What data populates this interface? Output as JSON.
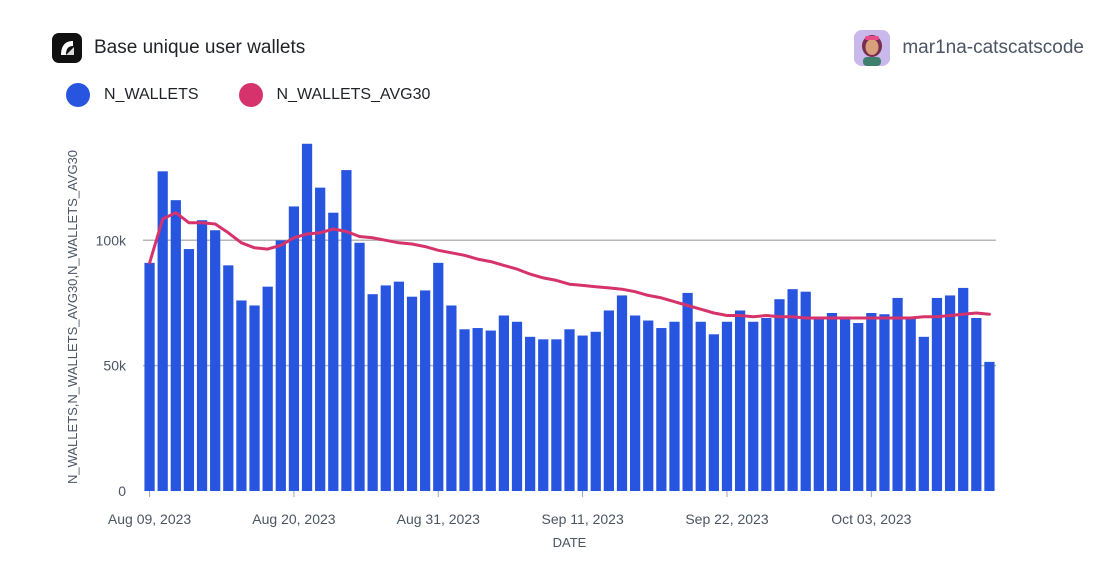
{
  "header": {
    "title": "Base unique user wallets",
    "username": "mar1na-catscatscode",
    "logo_icon": "flipside-logo-icon",
    "avatar_icon": "user-avatar-icon"
  },
  "legend": [
    {
      "label": "N_WALLETS",
      "color": "#2855e0"
    },
    {
      "label": "N_WALLETS_AVG30",
      "color": "#d6336c"
    }
  ],
  "chart_data": {
    "type": "bar",
    "title": "Base unique user wallets",
    "xlabel": "DATE",
    "ylabel": "N_WALLETS,N_WALLETS_AVG30,N_WALLETS_AVG30",
    "ylim": [
      0,
      140000
    ],
    "yticks": [
      0,
      50000,
      100000
    ],
    "ytick_labels": [
      "0",
      "50k",
      "100k"
    ],
    "xticks": [
      {
        "index": 0,
        "label": "Aug 09, 2023"
      },
      {
        "index": 11,
        "label": "Aug 20, 2023"
      },
      {
        "index": 22,
        "label": "Aug 31, 2023"
      },
      {
        "index": 33,
        "label": "Sep 11, 2023"
      },
      {
        "index": 44,
        "label": "Sep 22, 2023"
      },
      {
        "index": 55,
        "label": "Oct 03, 2023"
      }
    ],
    "grid": true,
    "start_date": "Aug 09, 2023",
    "series": [
      {
        "name": "N_WALLETS",
        "kind": "bar",
        "color": "#2855e0",
        "values": [
          91000,
          127500,
          116000,
          96500,
          108000,
          104000,
          90000,
          76000,
          74000,
          81500,
          100000,
          113500,
          138500,
          121000,
          111000,
          128000,
          99000,
          78500,
          82000,
          83500,
          77500,
          80000,
          91000,
          74000,
          64500,
          65000,
          64000,
          70000,
          67500,
          61500,
          60500,
          60500,
          64500,
          62000,
          63500,
          72000,
          78000,
          70000,
          68000,
          65000,
          67500,
          79000,
          67500,
          62500,
          67500,
          72000,
          67500,
          69000,
          76500,
          80500,
          79500,
          69000,
          71000,
          68500,
          67000,
          71000,
          70500,
          77000,
          69000,
          61500,
          77000,
          78000,
          81000,
          69000,
          51500
        ]
      },
      {
        "name": "N_WALLETS_AVG30",
        "kind": "line",
        "color": "#d6336c",
        "values": [
          91000,
          108500,
          111000,
          107000,
          107000,
          106500,
          103000,
          99000,
          97000,
          96500,
          98000,
          101000,
          102500,
          103000,
          104500,
          103500,
          101500,
          101000,
          100000,
          99000,
          98500,
          97500,
          96000,
          95000,
          94000,
          92500,
          91500,
          90000,
          88500,
          86500,
          85000,
          84000,
          82500,
          82000,
          81500,
          81000,
          80500,
          79500,
          78000,
          77000,
          75500,
          74000,
          72500,
          71000,
          70000,
          70000,
          69500,
          70000,
          69500,
          69500,
          69000,
          69000,
          69000,
          69000,
          69000,
          69000,
          69000,
          69000,
          69000,
          69500,
          69500,
          70000,
          70500,
          71000,
          70500
        ]
      }
    ]
  }
}
